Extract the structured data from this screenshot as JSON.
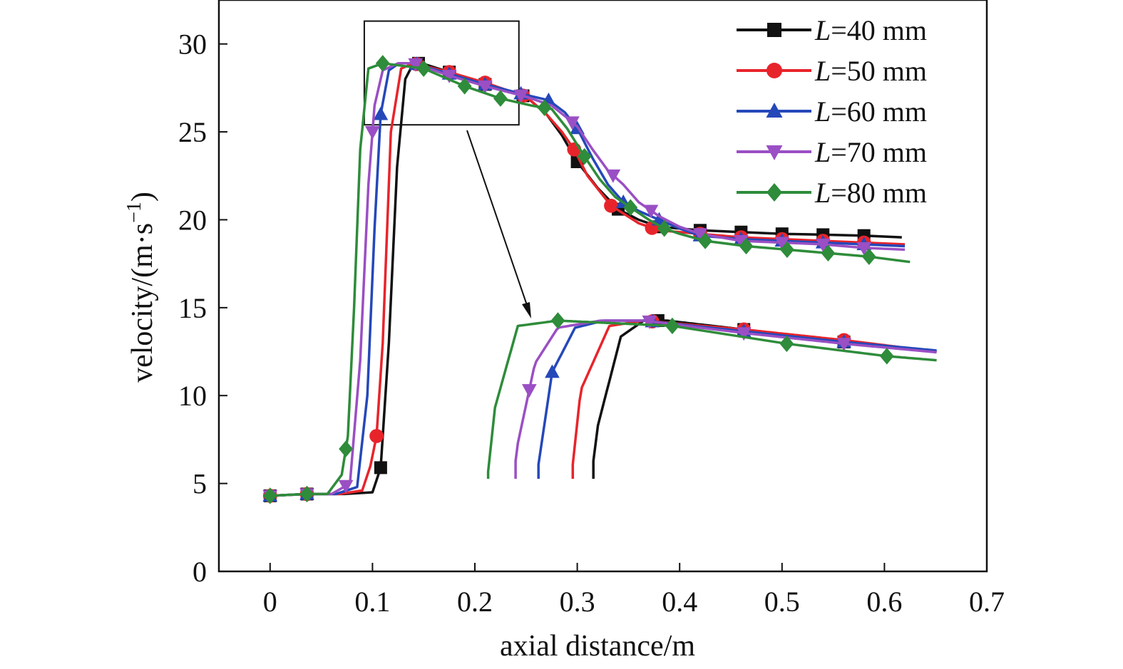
{
  "chart_data": {
    "type": "line",
    "title": "",
    "xlabel": "axial distance/m",
    "ylabel": "velocity/(m·s",
    "ylabel_sup": "−1",
    "ylabel_close": ")",
    "xlim": [
      -0.05,
      0.7
    ],
    "ylim": [
      0,
      32.5
    ],
    "xticks": [
      0,
      0.1,
      0.2,
      0.3,
      0.4,
      0.5,
      0.6,
      0.7
    ],
    "xtick_labels": [
      "0",
      "0.1",
      "0.2",
      "0.3",
      "0.4",
      "0.5",
      "0.6",
      "0.7"
    ],
    "yticks": [
      0,
      5,
      10,
      15,
      20,
      25,
      30
    ],
    "ytick_labels": [
      "0",
      "5",
      "10",
      "15",
      "20",
      "25",
      "30"
    ],
    "grid": false,
    "legend_position": "top-right",
    "series": [
      {
        "name": "=40 mm",
        "name_prefix": "L",
        "color": "#111111",
        "marker": "square",
        "x": [
          0,
          0.036,
          0.072,
          0.1,
          0.108,
          0.116,
          0.124,
          0.132,
          0.14,
          0.148,
          0.175,
          0.21,
          0.25,
          0.27,
          0.285,
          0.3,
          0.32,
          0.34,
          0.36,
          0.38,
          0.4,
          0.42,
          0.46,
          0.5,
          0.54,
          0.58,
          0.617
        ],
        "y": [
          4.3,
          4.4,
          4.4,
          4.5,
          5.9,
          13.0,
          23.0,
          28.0,
          28.9,
          28.9,
          28.4,
          27.7,
          27.0,
          26.0,
          24.8,
          23.3,
          21.8,
          20.6,
          20.0,
          19.6,
          19.5,
          19.4,
          19.3,
          19.2,
          19.15,
          19.1,
          19.0
        ],
        "markers_x": [
          0,
          0.036,
          0.108,
          0.145,
          0.175,
          0.21,
          0.247,
          0.3,
          0.34,
          0.38,
          0.42,
          0.46,
          0.5,
          0.54,
          0.58
        ]
      },
      {
        "name": "=50 mm",
        "name_prefix": "L",
        "color": "#e8242b",
        "marker": "circle",
        "x": [
          0,
          0.036,
          0.068,
          0.09,
          0.098,
          0.104,
          0.11,
          0.118,
          0.128,
          0.14,
          0.175,
          0.21,
          0.25,
          0.27,
          0.285,
          0.297,
          0.31,
          0.333,
          0.36,
          0.38,
          0.4,
          0.42,
          0.46,
          0.5,
          0.54,
          0.58,
          0.62
        ],
        "y": [
          4.3,
          4.4,
          4.4,
          4.6,
          6.0,
          7.7,
          13.0,
          25.0,
          28.6,
          28.9,
          28.4,
          27.8,
          27.0,
          26.0,
          25.0,
          24.0,
          22.5,
          20.8,
          19.8,
          19.4,
          19.3,
          19.2,
          19.0,
          18.9,
          18.8,
          18.7,
          18.6
        ],
        "markers_x": [
          0,
          0.036,
          0.104,
          0.143,
          0.175,
          0.21,
          0.247,
          0.297,
          0.333,
          0.373,
          0.42,
          0.46,
          0.5,
          0.54,
          0.58
        ]
      },
      {
        "name": "=60 mm",
        "name_prefix": "L",
        "color": "#2548b9",
        "marker": "triangle-up",
        "x": [
          0,
          0.036,
          0.064,
          0.085,
          0.095,
          0.102,
          0.108,
          0.116,
          0.126,
          0.14,
          0.175,
          0.21,
          0.25,
          0.272,
          0.288,
          0.3,
          0.315,
          0.33,
          0.345,
          0.36,
          0.38,
          0.4,
          0.42,
          0.46,
          0.5,
          0.54,
          0.58,
          0.62
        ],
        "y": [
          4.3,
          4.4,
          4.4,
          4.8,
          10.0,
          19.5,
          26.0,
          28.5,
          28.9,
          28.9,
          28.3,
          27.7,
          27.1,
          26.8,
          26.1,
          25.2,
          23.5,
          22.0,
          21.0,
          20.5,
          20.0,
          19.5,
          19.1,
          18.9,
          18.8,
          18.7,
          18.6,
          18.5
        ],
        "markers_x": [
          0,
          0.036,
          0.108,
          0.143,
          0.175,
          0.21,
          0.245,
          0.272,
          0.3,
          0.345,
          0.38,
          0.42,
          0.46,
          0.5,
          0.54,
          0.58
        ]
      },
      {
        "name": "=70 mm",
        "name_prefix": "L",
        "color": "#9a4fc4",
        "marker": "triangle-down",
        "x": [
          0,
          0.036,
          0.06,
          0.078,
          0.088,
          0.096,
          0.102,
          0.11,
          0.125,
          0.14,
          0.175,
          0.21,
          0.25,
          0.275,
          0.29,
          0.3,
          0.315,
          0.33,
          0.345,
          0.36,
          0.38,
          0.4,
          0.42,
          0.46,
          0.5,
          0.54,
          0.58,
          0.62
        ],
        "y": [
          4.3,
          4.4,
          4.4,
          5.0,
          12.0,
          22.0,
          26.5,
          28.5,
          28.9,
          28.9,
          28.2,
          27.6,
          27.0,
          26.5,
          25.8,
          25.3,
          24.0,
          22.8,
          22.0,
          21.0,
          20.2,
          19.6,
          19.2,
          18.8,
          18.7,
          18.6,
          18.4,
          18.3
        ],
        "markers_x": [
          0,
          0.036,
          0.074,
          0.1,
          0.142,
          0.175,
          0.21,
          0.245,
          0.295,
          0.335,
          0.372,
          0.42,
          0.46,
          0.5,
          0.54,
          0.58
        ]
      },
      {
        "name": "=80 mm",
        "name_prefix": "L",
        "color": "#2e8c3a",
        "marker": "diamond",
        "x": [
          0,
          0.036,
          0.056,
          0.07,
          0.076,
          0.082,
          0.088,
          0.096,
          0.11,
          0.15,
          0.19,
          0.225,
          0.255,
          0.275,
          0.29,
          0.307,
          0.322,
          0.337,
          0.352,
          0.37,
          0.385,
          0.4,
          0.425,
          0.465,
          0.505,
          0.545,
          0.585,
          0.625
        ],
        "y": [
          4.3,
          4.4,
          4.4,
          5.5,
          7.7,
          15.0,
          24.0,
          28.6,
          28.9,
          28.6,
          27.6,
          26.9,
          26.5,
          26.3,
          25.2,
          23.6,
          22.3,
          21.3,
          20.7,
          20.0,
          19.5,
          19.2,
          18.8,
          18.5,
          18.3,
          18.1,
          17.9,
          17.6
        ],
        "markers_x": [
          0,
          0.036,
          0.074,
          0.11,
          0.15,
          0.19,
          0.225,
          0.268,
          0.307,
          0.352,
          0.385,
          0.425,
          0.465,
          0.505,
          0.545,
          0.585
        ]
      }
    ]
  }
}
